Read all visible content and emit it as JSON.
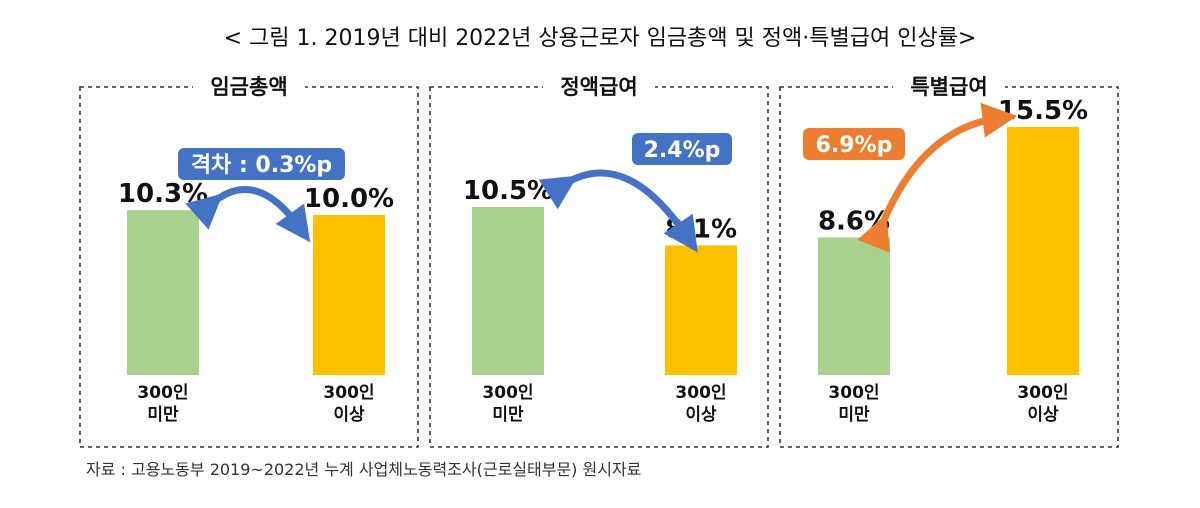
{
  "title": "< 그림 1. 2019년 대비 2022년 상용근로자 임금총액 및 정액·특별급여 인상률>",
  "source": "자료 : 고용노동부 2019~2022년 누계 사업체노동력조사(근로실태부문) 원시자료",
  "colors": {
    "small": "#a9d18e",
    "large": "#ffc000",
    "blue": "#4472c4",
    "orange": "#ed7d31"
  },
  "chart_data": [
    {
      "type": "bar",
      "title": "임금총액",
      "categories": [
        "300인\n미만",
        "300인\n이상"
      ],
      "values": [
        10.3,
        10.0
      ],
      "labels": [
        "10.3%",
        "10.0%"
      ],
      "annotation": "격차 : 0.3%p",
      "annotation_color": "#4472c4"
    },
    {
      "type": "bar",
      "title": "정액급여",
      "categories": [
        "300인\n미만",
        "300인\n이상"
      ],
      "values": [
        10.5,
        8.1
      ],
      "labels": [
        "10.5%",
        "8.1%"
      ],
      "annotation": "2.4%p",
      "annotation_color": "#4472c4"
    },
    {
      "type": "bar",
      "title": "특별급여",
      "categories": [
        "300인\n미만",
        "300인\n이상"
      ],
      "values": [
        8.6,
        15.5
      ],
      "labels": [
        "8.6%",
        "15.5%"
      ],
      "annotation": "6.9%p",
      "annotation_color": "#ed7d31"
    }
  ]
}
